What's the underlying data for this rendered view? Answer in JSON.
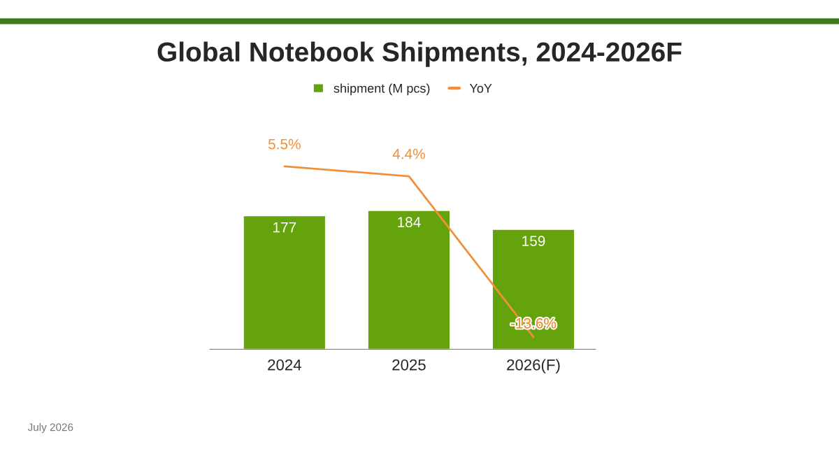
{
  "chart_data": {
    "type": "bar",
    "title": "Global Notebook Shipments, 2024-2026F",
    "categories": [
      "2024",
      "2025",
      "2026(F)"
    ],
    "series": [
      {
        "name": "shipment (M pcs)",
        "color": "#65a30d",
        "values": [
          177,
          184,
          159
        ],
        "data_labels": true
      },
      {
        "name": "YoY",
        "type": "line",
        "axis": "y2",
        "color": "#f0913a",
        "values": [
          5.5,
          4.4,
          -13.6
        ],
        "value_labels": [
          "5.5%",
          "4.4%",
          "-13.6%"
        ]
      }
    ],
    "tick_labels": "x",
    "legend": "top",
    "annotations": [
      "July 2026"
    ]
  }
}
